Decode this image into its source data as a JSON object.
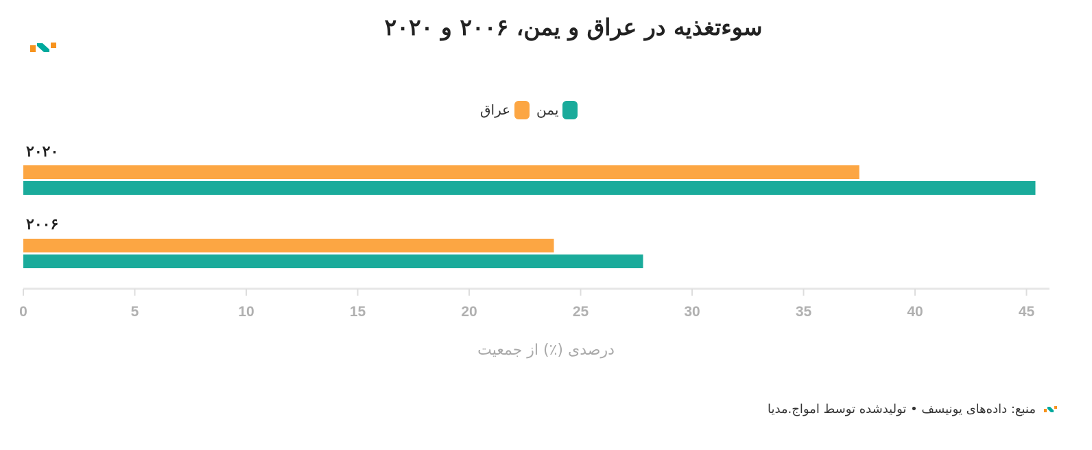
{
  "title": "سوءتغذیه در عراق و یمن، ۲۰۰۶ و ۲۰۲۰",
  "legend": [
    {
      "label": "یمن",
      "color": "#1aab9b"
    },
    {
      "label": "عراق",
      "color": "#fca643"
    }
  ],
  "footer": {
    "source": "منبع: داده‌های یونیسف • تولیدشده توسط امواج.مدیا"
  },
  "brand": {
    "orange": "#f7931e",
    "teal": "#00a99d"
  },
  "chart_data": {
    "type": "bar",
    "orientation": "horizontal",
    "title": "سوءتغذیه در عراق و یمن، ۲۰۰۶ و ۲۰۲۰",
    "categories": [
      "۲۰۲۰",
      "۲۰۰۶"
    ],
    "series": [
      {
        "name": "عراق",
        "color": "#fca643",
        "values": [
          37.5,
          23.8
        ]
      },
      {
        "name": "یمن",
        "color": "#1aab9b",
        "values": [
          45.4,
          27.8
        ]
      }
    ],
    "xlabel": "درصدی (٪) از جمعیت",
    "xlim": [
      0,
      46
    ],
    "xticks": [
      0,
      5,
      10,
      15,
      20,
      25,
      30,
      35,
      40,
      45
    ],
    "grid": false,
    "legend_position": "top-center"
  }
}
